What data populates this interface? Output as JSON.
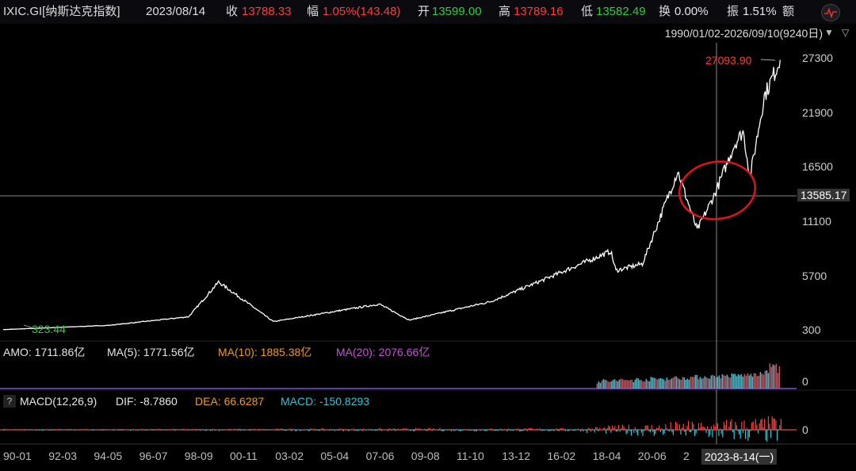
{
  "header": {
    "symbol": "IXIC.GI[纳斯达克指数]",
    "date": "2023/08/14",
    "close_label": "收",
    "close_value": "13788.33",
    "change_label": "幅",
    "change_value": "1.05%(143.48)",
    "open_label": "开",
    "open_value": "13599.00",
    "high_label": "高",
    "high_value": "13789.16",
    "low_label": "低",
    "low_value": "13582.49",
    "turnover_label": "换",
    "turnover_value": "0.00%",
    "amplitude_label": "振",
    "amplitude_value": "1.51%",
    "amount_label": "额",
    "logo_icon": "wp-logo-icon"
  },
  "range_selector": {
    "label": "1990/01/02-2026/09/10(9240日)"
  },
  "price_panel": {
    "max_label": "27093.90",
    "min_label": "323.44",
    "crosshair_price": "13585.17",
    "y_ticks": [
      "27300",
      "21900",
      "16500",
      "11100",
      "5700",
      "300"
    ]
  },
  "volume_panel": {
    "amo_label": "AMO: 1711.86亿",
    "ma5_label": "MA(5): 1771.56亿",
    "ma10_label": "MA(10): 1885.38亿",
    "ma20_label": "MA(20): 2076.66亿",
    "zero_tick": "0"
  },
  "macd_panel": {
    "help": "?",
    "title": "MACD(12,26,9)",
    "dif_label": "DIF: -8.7860",
    "dea_label": "DEA: 66.6287",
    "macd_label": "MACD: -150.8293",
    "zero_tick": "0"
  },
  "x_axis": {
    "ticks": [
      "90-01",
      "92-03",
      "94-05",
      "96-07",
      "98-09",
      "00-11",
      "03-02",
      "05-04",
      "07-06",
      "09-08",
      "11-10",
      "13-12",
      "16-02",
      "18-04",
      "20-06",
      "2"
    ],
    "crosshair_date": "2023-8-14(一)"
  },
  "colors": {
    "price_line": "#ffffff",
    "up": "#ff3b3b",
    "down": "#2ecc40",
    "ma10": "#f39c12",
    "ma20": "#c653d6",
    "macd": "#2fc4d6",
    "circle": "#e0121c"
  },
  "chart_data": {
    "type": "line",
    "x": [
      "1990-01",
      "1995-01",
      "1998-10",
      "2000-03",
      "2002-10",
      "2007-10",
      "2009-03",
      "2013-01",
      "2015-06",
      "2018-09",
      "2018-12",
      "2020-03",
      "2021-11",
      "2022-10",
      "2023-08",
      "2024-07",
      "2024-12",
      "2025-04",
      "2025-12",
      "2026-09"
    ],
    "series": [
      {
        "values": [
          323,
          750,
          1600,
          5050,
          1120,
          2860,
          1270,
          3100,
          5200,
          8100,
          6190,
          6860,
          16060,
          10200,
          13788,
          18650,
          20000,
          15500,
          23500,
          27094
        ]
      }
    ],
    "ylim": [
      300,
      27300
    ],
    "y_ticks": [
      300,
      5700,
      11100,
      16500,
      21900,
      27300
    ],
    "grid": false
  }
}
